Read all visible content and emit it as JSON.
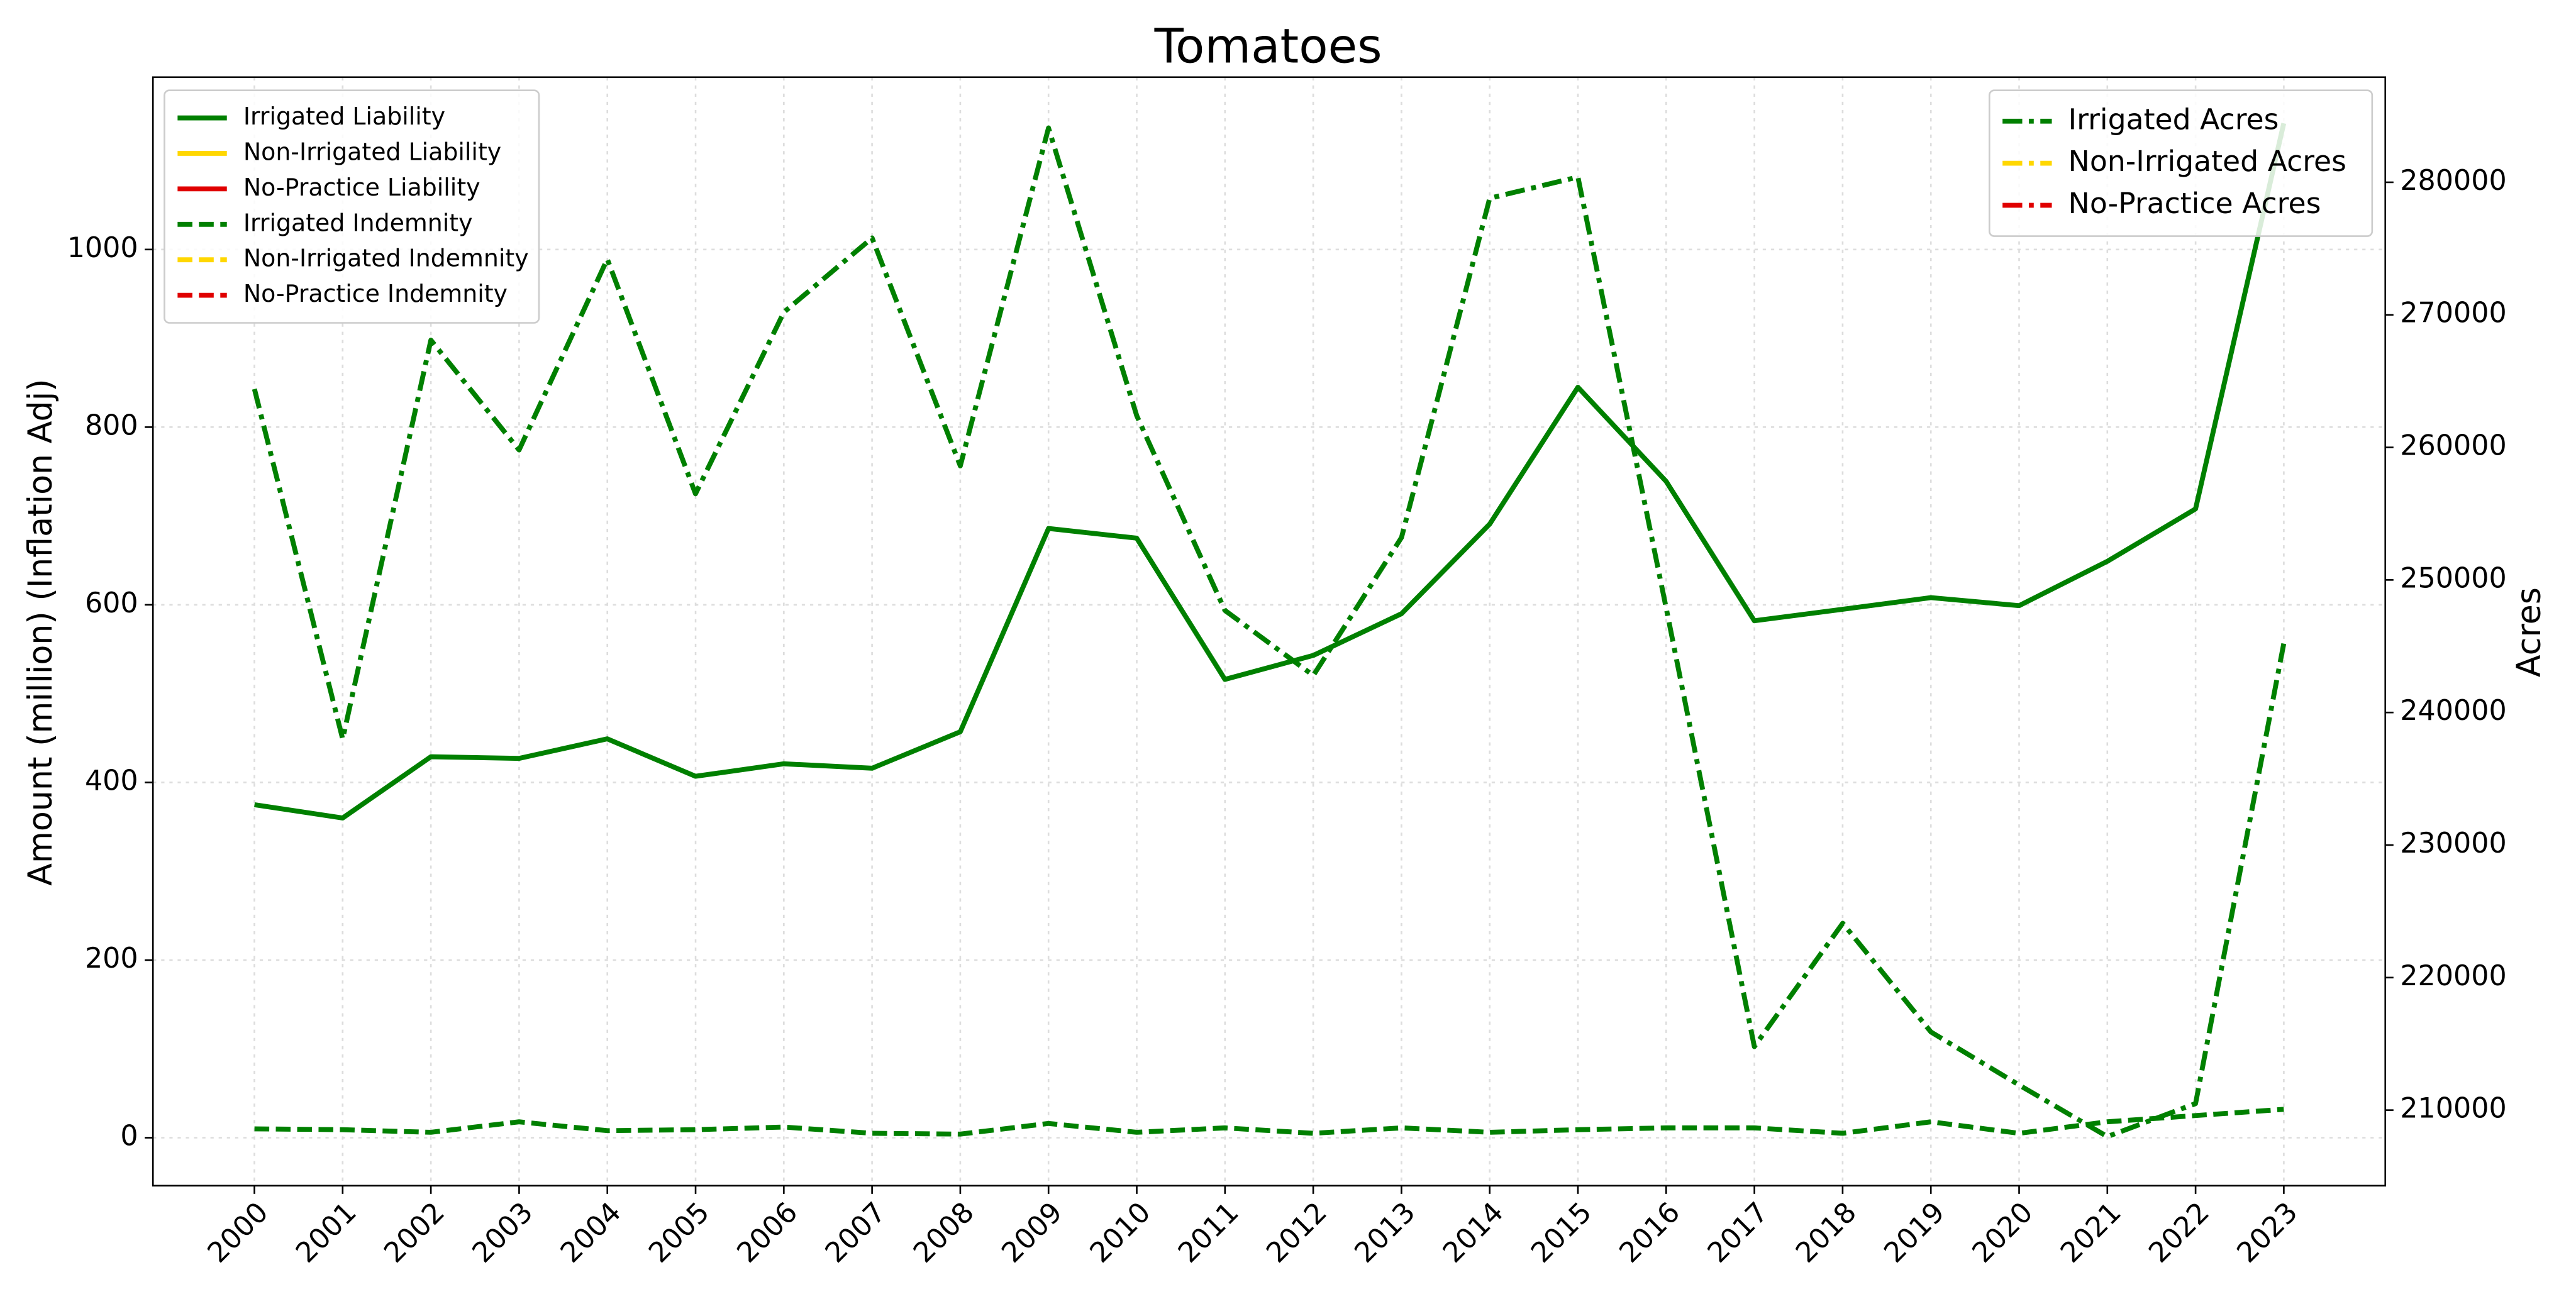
{
  "chart_data": {
    "type": "line",
    "title": "Tomatoes",
    "ylabel": "Amount (million) (Inflation Adj)",
    "y2label": "Acres",
    "categories": [
      "2000",
      "2001",
      "2002",
      "2003",
      "2004",
      "2005",
      "2006",
      "2007",
      "2008",
      "2009",
      "2010",
      "2011",
      "2012",
      "2013",
      "2014",
      "2015",
      "2016",
      "2017",
      "2018",
      "2019",
      "2020",
      "2021",
      "2022",
      "2023"
    ],
    "ylim": [
      -54,
      1194
    ],
    "yticks": [
      0,
      200,
      400,
      600,
      800,
      1000
    ],
    "y2lim": [
      204300,
      287930
    ],
    "y2ticks": [
      210000,
      220000,
      230000,
      240000,
      250000,
      260000,
      270000,
      280000
    ],
    "grid": true,
    "legend": "upper left",
    "legend2": "upper right",
    "series": [
      {
        "name": "Irrigated Liability",
        "color": "#008000",
        "style": "solid",
        "values": [
          375,
          360,
          429,
          427,
          449,
          407,
          421,
          416,
          457,
          686,
          675,
          516,
          543,
          590,
          691,
          845,
          739,
          582,
          595,
          608,
          599,
          649,
          708,
          1142
        ]
      },
      {
        "name": "Non-Irrigated Liability",
        "color": "#ffd700",
        "style": "solid",
        "values": [
          null,
          null,
          null,
          null,
          null,
          null,
          null,
          null,
          null,
          null,
          null,
          null,
          null,
          null,
          null,
          null,
          null,
          null,
          null,
          null,
          null,
          null,
          null,
          null
        ]
      },
      {
        "name": "No-Practice Liability",
        "color": "#e00000",
        "style": "solid",
        "values": [
          null,
          null,
          null,
          null,
          null,
          null,
          null,
          null,
          null,
          null,
          null,
          null,
          null,
          null,
          null,
          null,
          null,
          null,
          null,
          null,
          null,
          null,
          null,
          null
        ]
      },
      {
        "name": "Irrigated Indemnity",
        "color": "#008000",
        "style": "dashed",
        "values": [
          10,
          9,
          6,
          18,
          8,
          9,
          12,
          5,
          4,
          16,
          6,
          11,
          5,
          11,
          6,
          9,
          11,
          11,
          5,
          18,
          5,
          18,
          25,
          32
        ]
      },
      {
        "name": "Non-Irrigated Indemnity",
        "color": "#ffd700",
        "style": "dashed",
        "values": [
          null,
          null,
          null,
          null,
          null,
          null,
          null,
          null,
          null,
          null,
          null,
          null,
          null,
          null,
          null,
          null,
          null,
          null,
          null,
          null,
          null,
          null,
          null,
          null
        ]
      },
      {
        "name": "No-Practice Indemnity",
        "color": "#e00000",
        "style": "dashed",
        "values": [
          null,
          null,
          null,
          null,
          null,
          null,
          null,
          null,
          null,
          null,
          null,
          null,
          null,
          null,
          null,
          null,
          null,
          null,
          null,
          null,
          null,
          null,
          null,
          null
        ]
      },
      {
        "name": "Irrigated Acres",
        "color": "#008000",
        "style": "dashdot",
        "axis": "y2",
        "values": [
          264400,
          238000,
          268100,
          259800,
          274200,
          256500,
          270200,
          275800,
          258600,
          284100,
          262400,
          247700,
          242800,
          253200,
          278800,
          280400,
          247900,
          214800,
          224100,
          215900,
          211900,
          208000,
          210500,
          245200
        ]
      },
      {
        "name": "Non-Irrigated Acres",
        "color": "#ffd700",
        "style": "dashdot",
        "axis": "y2",
        "values": [
          null,
          null,
          null,
          null,
          null,
          null,
          null,
          null,
          null,
          null,
          null,
          null,
          null,
          null,
          null,
          null,
          null,
          null,
          null,
          null,
          null,
          null,
          null,
          null
        ]
      },
      {
        "name": "No-Practice Acres",
        "color": "#e00000",
        "style": "dashdot",
        "axis": "y2",
        "values": [
          null,
          null,
          null,
          null,
          null,
          null,
          null,
          null,
          null,
          null,
          null,
          null,
          null,
          null,
          null,
          null,
          null,
          null,
          null,
          null,
          null,
          null,
          null,
          null
        ]
      }
    ]
  }
}
